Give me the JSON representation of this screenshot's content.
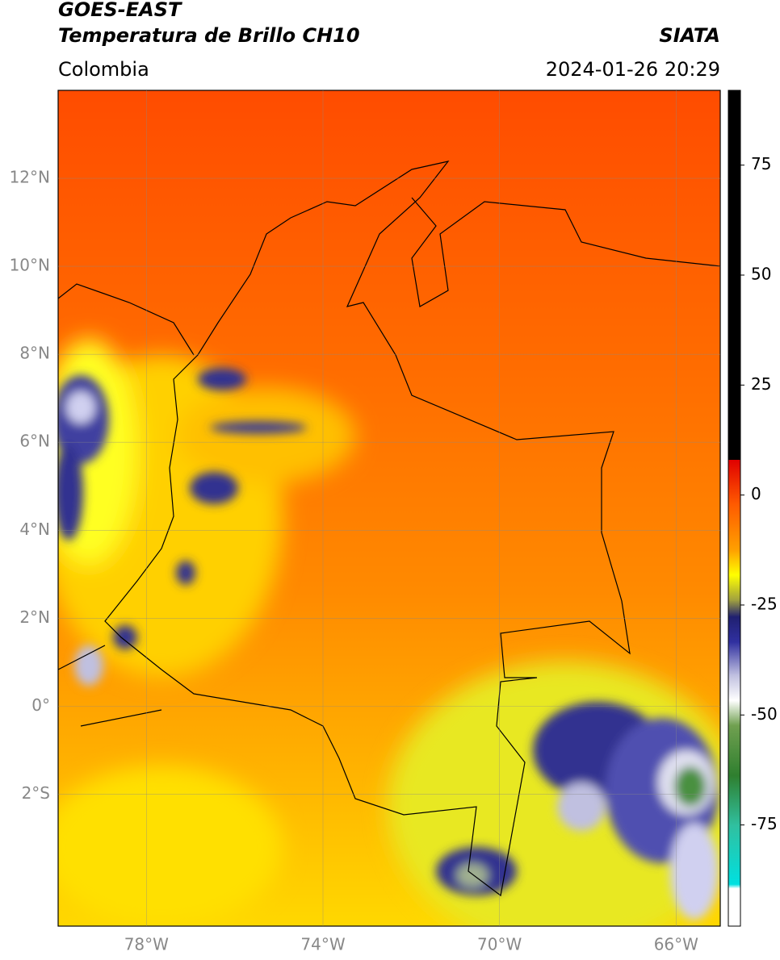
{
  "header": {
    "title_line1": "GOES-EAST",
    "title_line2": "Temperatura de Brillo CH10",
    "source": "SIATA",
    "region": "Colombia",
    "datetime": "2024-01-26 20:29"
  },
  "map": {
    "xlim": [
      -80,
      -65
    ],
    "ylim": [
      -5,
      14
    ],
    "lat_ticks": [
      {
        "value": 12,
        "label": "12°N"
      },
      {
        "value": 10,
        "label": "10°N"
      },
      {
        "value": 8,
        "label": "8°N"
      },
      {
        "value": 6,
        "label": "6°N"
      },
      {
        "value": 4,
        "label": "4°N"
      },
      {
        "value": 2,
        "label": "2°N"
      },
      {
        "value": 0,
        "label": "0°"
      },
      {
        "value": -2,
        "label": "2°S"
      }
    ],
    "lon_ticks": [
      {
        "value": -78,
        "label": "78°W"
      },
      {
        "value": -74,
        "label": "74°W"
      },
      {
        "value": -70,
        "label": "70°W"
      },
      {
        "value": -66,
        "label": "66°W"
      }
    ],
    "grid": true
  },
  "colorbar": {
    "lim": [
      -98,
      92
    ],
    "ticks": [
      75,
      50,
      25,
      0,
      -25,
      -50,
      -75
    ]
  }
}
